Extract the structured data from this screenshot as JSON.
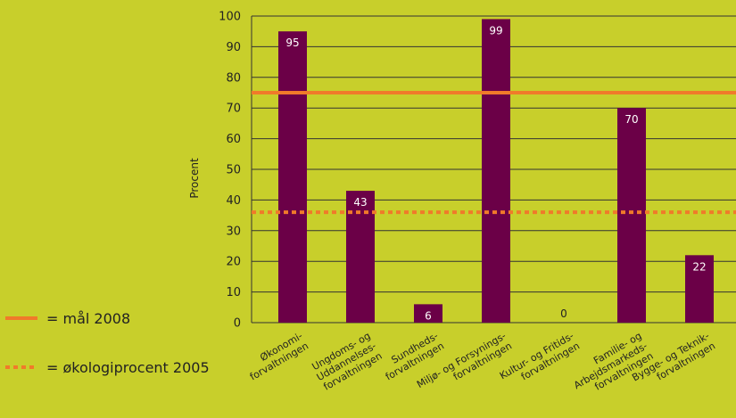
{
  "chart_data": {
    "type": "bar",
    "ylabel": "Procent",
    "ylim": [
      0,
      100
    ],
    "yticks": [
      0,
      10,
      20,
      30,
      40,
      50,
      60,
      70,
      80,
      90,
      100
    ],
    "grid": true,
    "categories": [
      [
        "Økonomi-",
        "forvaltningen"
      ],
      [
        "Ungdoms- og",
        "Uddannelses-",
        "forvaltningen"
      ],
      [
        "Sundheds-",
        "forvaltningen"
      ],
      [
        "Miljø- og Forsynings-",
        "forvaltningen"
      ],
      [
        "Kultur- og Fritids-",
        "forvaltningen"
      ],
      [
        "Familie- og",
        "Arbejdsmarkeds-",
        "forvaltningen"
      ],
      [
        "Bygge- og Teknik-",
        "forvaltningen"
      ]
    ],
    "values": [
      95,
      43,
      6,
      99,
      0,
      70,
      22
    ],
    "value_labels": [
      "95",
      "43",
      "6",
      "99",
      "0",
      "70",
      "22"
    ],
    "reference_lines": [
      {
        "name": "= mål 2008",
        "value": 75,
        "style": "solid",
        "color": "#f07a2a"
      },
      {
        "name": "= økologiprocent 2005",
        "value": 36,
        "style": "dotted",
        "color": "#f07a2a"
      }
    ],
    "legend_position": "bottom-left",
    "colors": {
      "bar": "#6b0047",
      "background": "#c8cf2b",
      "plot_background": "#c8cf2b",
      "grid": "#333333"
    }
  }
}
